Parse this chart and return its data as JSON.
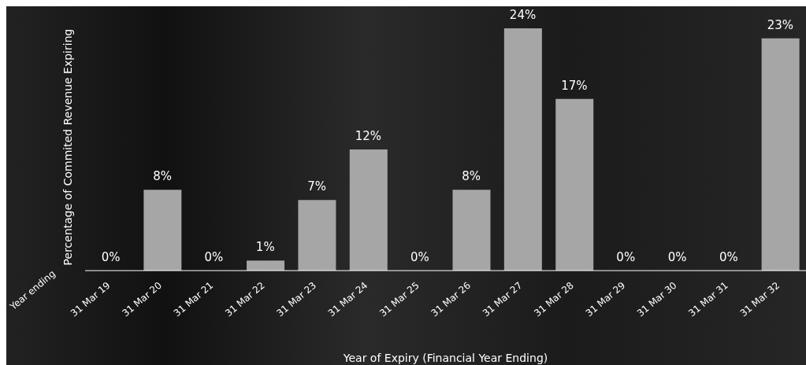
{
  "chart_data": {
    "type": "bar",
    "xlabel": "Year of Expiry (Financial Year Ending)",
    "ylabel": "Percentage of Commited Revenue Expiring",
    "annotations": [
      "Year ending"
    ],
    "categories": [
      "31 Mar 19",
      "31 Mar 20",
      "31 Mar 21",
      "31 Mar 22",
      "31 Mar 23",
      "31 Mar 24",
      "31 Mar 25",
      "31 Mar 26",
      "31 Mar 27",
      "31 Mar 28",
      "31 Mar 29",
      "31 Mar 30",
      "31 Mar 31",
      "31 Mar 32"
    ],
    "values": [
      0,
      8,
      0,
      1,
      7,
      12,
      0,
      8,
      24,
      17,
      0,
      0,
      0,
      23
    ],
    "color": "#a6a6a6",
    "data_labels": true,
    "value_labels": [
      "0%",
      "8%",
      "0%",
      "1%",
      "7%",
      "12%",
      "0%",
      "8%",
      "24%",
      "17%",
      "0%",
      "0%",
      "0%",
      "23%"
    ],
    "grid": false,
    "legend": false
  }
}
